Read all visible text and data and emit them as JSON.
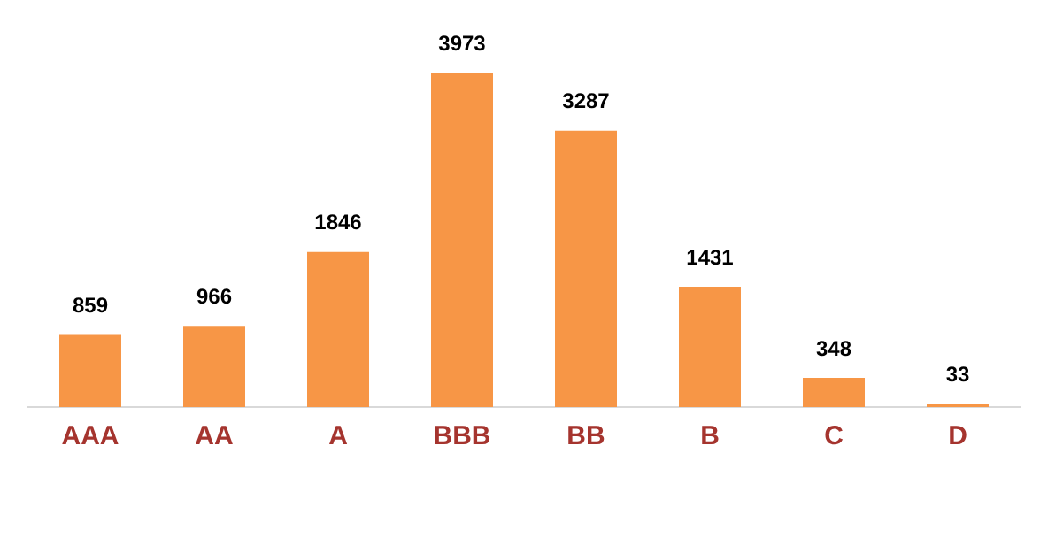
{
  "chart_data": {
    "type": "bar",
    "categories": [
      "AAA",
      "AA",
      "A",
      "BBB",
      "BB",
      "B",
      "C",
      "D"
    ],
    "values": [
      859,
      966,
      1846,
      3973,
      3287,
      1431,
      348,
      33
    ],
    "color": "#f79646",
    "data_labels": true,
    "grid": false,
    "legend": false
  }
}
